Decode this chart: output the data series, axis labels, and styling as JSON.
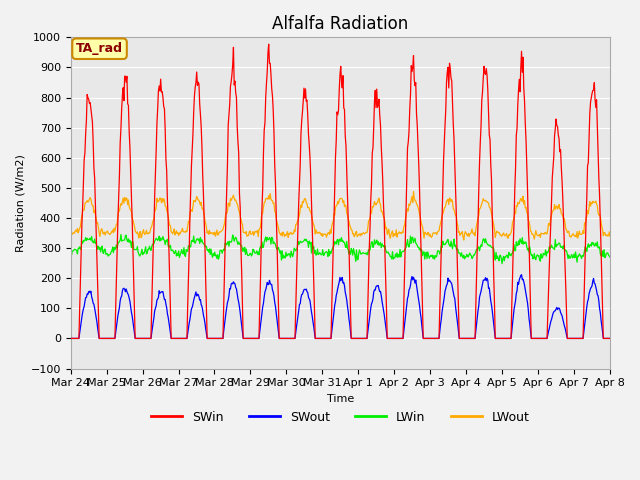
{
  "title": "Alfalfa Radiation",
  "ylabel": "Radiation (W/m2)",
  "xlabel": "Time",
  "ylim": [
    -100,
    1000
  ],
  "annotation": "TA_rad",
  "x_tick_labels": [
    "Mar 24",
    "Mar 25",
    "Mar 26",
    "Mar 27",
    "Mar 28",
    "Mar 29",
    "Mar 30",
    "Mar 31",
    "Apr 1",
    "Apr 2",
    "Apr 3",
    "Apr 4",
    "Apr 5",
    "Apr 6",
    "Apr 7",
    "Apr 8"
  ],
  "colors": {
    "SWin": "#ff0000",
    "SWout": "#0000ff",
    "LWin": "#00ee00",
    "LWout": "#ffaa00"
  },
  "plot_bg_color": "#e8e8e8",
  "fig_bg_color": "#f2f2f2",
  "grid_color": "#ffffff",
  "title_fontsize": 12,
  "axis_fontsize": 8,
  "legend_fontsize": 9,
  "n_days": 15,
  "peak_heights_SWin": [
    810,
    870,
    860,
    870,
    910,
    920,
    820,
    880,
    820,
    900,
    900,
    890,
    905,
    720,
    850
  ],
  "peak_heights_SWout": [
    155,
    165,
    155,
    145,
    185,
    190,
    165,
    195,
    175,
    200,
    195,
    200,
    205,
    100,
    185
  ],
  "LWin_base": 300,
  "LWout_base": 360,
  "annotation_color": "#8B0000",
  "annotation_bg": "#ffffaa",
  "annotation_border": "#cc8800"
}
